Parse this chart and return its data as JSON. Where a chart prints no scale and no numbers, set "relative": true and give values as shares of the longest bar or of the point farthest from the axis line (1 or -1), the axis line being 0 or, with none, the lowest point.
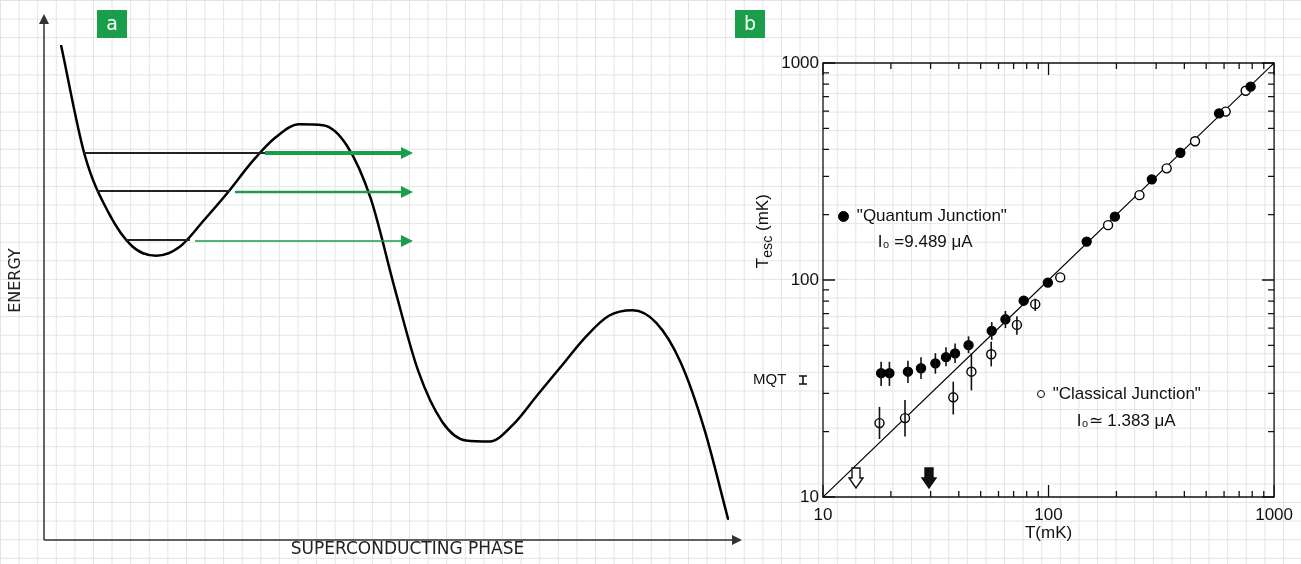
{
  "chart_data": [
    {
      "type": "line",
      "relative": true,
      "legend": false,
      "color": "#000000",
      "xlabel": "SUPERCONDUCTING PHASE",
      "ylabel": "ENERGY",
      "annotations": [
        "a"
      ],
      "categories": [
        null,
        null,
        null,
        null,
        null,
        null,
        null,
        null,
        null,
        null,
        null,
        null,
        null,
        null,
        null,
        null,
        null,
        null,
        null,
        null,
        null,
        null,
        null,
        null,
        null,
        null,
        null,
        null,
        null
      ],
      "values": [
        1.0,
        0.777,
        0.661,
        0.593,
        0.574,
        0.593,
        0.646,
        0.702,
        0.763,
        0.813,
        0.84,
        0.838,
        0.797,
        0.69,
        0.51,
        0.341,
        0.239,
        0.201,
        0.199,
        0.234,
        0.293,
        0.351,
        0.409,
        0.453,
        0.464,
        0.438,
        0.36,
        0.225,
        0.043
      ]
    },
    {
      "type": "scatter",
      "log": "xy",
      "legend": "left",
      "xlabel": "T(mK)",
      "ylabel": "T$_{esc}$ (mK)",
      "xlim": [
        10,
        1000
      ],
      "ylim": [
        10,
        1000
      ],
      "xticks": [
        10,
        {
          "value": 20,
          "label": null
        },
        {
          "value": 30,
          "label": null
        },
        {
          "value": 40,
          "label": null
        },
        {
          "value": 50,
          "label": null
        },
        {
          "value": 60,
          "label": null
        },
        {
          "value": 70,
          "label": null
        },
        {
          "value": 80,
          "label": null
        },
        {
          "value": 90,
          "label": null
        },
        100,
        {
          "value": 200,
          "label": null
        },
        {
          "value": 300,
          "label": null
        },
        {
          "value": 400,
          "label": null
        },
        {
          "value": 500,
          "label": null
        },
        {
          "value": 600,
          "label": null
        },
        {
          "value": 700,
          "label": null
        },
        {
          "value": 800,
          "label": null
        },
        {
          "value": 900,
          "label": null
        },
        1000
      ],
      "yticks": [
        10,
        {
          "value": 20,
          "label": null
        },
        {
          "value": 30,
          "label": null
        },
        {
          "value": 40,
          "label": null
        },
        {
          "value": 50,
          "label": null
        },
        {
          "value": 60,
          "label": null
        },
        {
          "value": 70,
          "label": null
        },
        {
          "value": 80,
          "label": null
        },
        {
          "value": 90,
          "label": null
        },
        100,
        {
          "value": 200,
          "label": null
        },
        {
          "value": 300,
          "label": null
        },
        {
          "value": 400,
          "label": null
        },
        {
          "value": 500,
          "label": null
        },
        {
          "value": 600,
          "label": null
        },
        {
          "value": 700,
          "label": null
        },
        {
          "value": 800,
          "label": null
        },
        {
          "value": 900,
          "label": null
        },
        1000
      ],
      "annotations": [
        "b",
        "I₀ =9.489 μA",
        "I₀≃ 1.383 μA",
        "MQT"
      ],
      "series": [
        {
          "name": "\"Quantum Junction\"",
          "color": "#000000",
          "marker": "circle",
          "x": [
            18.1,
            19.7,
            23.8,
            27.2,
            31.5,
            35.1,
            38.5,
            44.2,
            56,
            64.4,
            77.6,
            99.3,
            147.6,
            196.8,
            287,
            384,
            570,
            787
          ],
          "values": [
            37.2,
            37.2,
            37.8,
            39.2,
            41.3,
            44.1,
            45.9,
            50.1,
            58.3,
            65.9,
            80.3,
            97.3,
            150.3,
            195.9,
            291,
            386,
            586,
            778
          ],
          "errors": [
            [
              32.5,
              42
            ],
            [
              32.5,
              42
            ],
            [
              33.5,
              42.5
            ],
            [
              35,
              44
            ],
            [
              37,
              46
            ],
            [
              40,
              49
            ],
            [
              41.5,
              51
            ],
            [
              46,
              55
            ],
            [
              53,
              64
            ],
            [
              60,
              72
            ],
            null,
            null,
            null,
            null,
            null,
            null,
            null,
            null
          ]
        },
        {
          "name": "\"Classical Junction\"",
          "color": "#000000",
          "marker": "circle",
          "x": [
            17.8,
            23.1,
            37.8,
            45.5,
            55.7,
            72.4,
            87.3,
            112.7,
            183.6,
            253,
            334,
            446,
            610,
            748
          ],
          "values": [
            21.9,
            23.1,
            28.8,
            37.8,
            45.5,
            62.1,
            77.4,
            102.8,
            179,
            246,
            327,
            436,
            597,
            745
          ],
          "errors": [
            [
              18.5,
              26
            ],
            [
              19,
              28
            ],
            [
              24,
              34
            ],
            [
              31,
              46
            ],
            [
              40,
              52
            ],
            [
              56,
              68
            ],
            [
              72,
              82
            ],
            null,
            null,
            null,
            null,
            null,
            null,
            null
          ]
        },
        {
          "type": "line",
          "color": "#000000",
          "x": [
            10,
            1000
          ],
          "values": [
            10,
            1000
          ]
        }
      ]
    }
  ]
}
